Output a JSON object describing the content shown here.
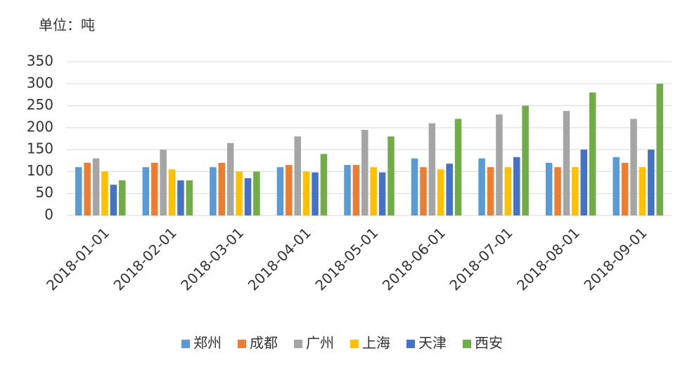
{
  "chart_data": {
    "type": "bar",
    "unit_label": "单位：吨",
    "categories": [
      "2018-01-01",
      "2018-02-01",
      "2018-03-01",
      "2018-04-01",
      "2018-05-01",
      "2018-06-01",
      "2018-07-01",
      "2018-08-01",
      "2018-09-01"
    ],
    "series": [
      {
        "name": "郑州",
        "color": "#5b9bd5",
        "values": [
          110,
          110,
          110,
          110,
          115,
          130,
          130,
          120,
          133
        ]
      },
      {
        "name": "成都",
        "color": "#ed7d31",
        "values": [
          120,
          120,
          120,
          115,
          115,
          110,
          110,
          110,
          120
        ]
      },
      {
        "name": "广州",
        "color": "#a5a5a5",
        "values": [
          130,
          150,
          165,
          180,
          195,
          210,
          230,
          238,
          220
        ]
      },
      {
        "name": "上海",
        "color": "#ffc000",
        "values": [
          100,
          105,
          100,
          100,
          110,
          105,
          110,
          110,
          110
        ]
      },
      {
        "name": "天津",
        "color": "#4472c4",
        "values": [
          70,
          80,
          85,
          98,
          98,
          118,
          133,
          150,
          150
        ]
      },
      {
        "name": "西安",
        "color": "#70ad47",
        "values": [
          80,
          80,
          100,
          140,
          180,
          220,
          250,
          280,
          300
        ]
      }
    ],
    "ylim": [
      0,
      350
    ],
    "yticks": [
      0,
      50,
      100,
      150,
      200,
      250,
      300,
      350
    ],
    "grid": true,
    "legend": "bottom"
  }
}
